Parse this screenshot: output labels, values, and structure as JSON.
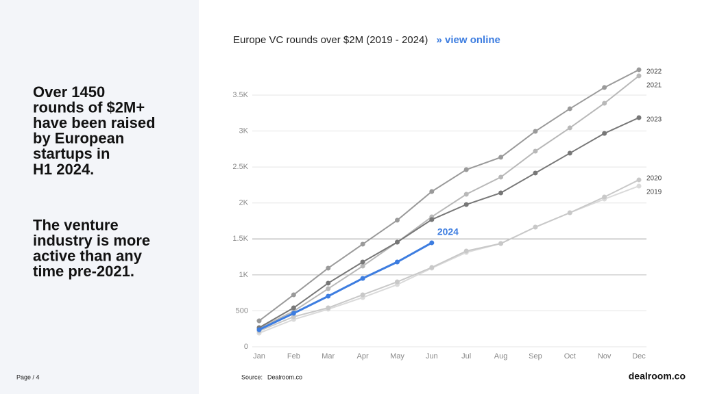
{
  "slide": {
    "paragraphs": [
      [
        "Over 1450",
        "rounds of $2M+",
        "have been raised",
        "by European",
        "startups in",
        "H1 2024."
      ],
      [
        "The venture",
        "industry is more",
        "active than any",
        "time pre-2021."
      ]
    ],
    "page": "Page / 4",
    "source_label": "Source:",
    "source": "Dealroom.co",
    "logo": "dealroom.co",
    "link": "» view online"
  },
  "chart_data": {
    "type": "line",
    "title": "Europe VC rounds over $2M (2019 - 2024)",
    "categories": [
      "Jan",
      "Feb",
      "Mar",
      "Apr",
      "May",
      "Jun",
      "Jul",
      "Aug",
      "Sep",
      "Oct",
      "Nov",
      "Dec"
    ],
    "ylim": [
      0,
      4000
    ],
    "yticks": [
      0,
      500,
      {
        "value": 1000,
        "label": "1K"
      },
      {
        "value": 1500,
        "label": "1.5K"
      },
      {
        "value": 2000,
        "label": "2K"
      },
      {
        "value": 2500,
        "label": "2.5K"
      },
      {
        "value": 3000,
        "label": "3K"
      },
      {
        "value": 3500,
        "label": "3.5K"
      }
    ],
    "grid": true,
    "series": [
      {
        "name": "2019",
        "color": "#dadada",
        "values": [
          190,
          380,
          523,
          685,
          865,
          1094,
          1312,
          1436,
          1664,
          1864,
          2054,
          2235
        ]
      },
      {
        "name": "2020",
        "color": "#c8c8c8",
        "values": [
          219,
          418,
          542,
          723,
          903,
          1103,
          1332,
          1436,
          1664,
          1864,
          2083,
          2321
        ]
      },
      {
        "name": "2021",
        "color": "#b8b8b8",
        "values": [
          257,
          495,
          808,
          1122,
          1455,
          1807,
          2121,
          2359,
          2720,
          3044,
          3386,
          3767
        ]
      },
      {
        "name": "2022",
        "color": "#9a9a9a",
        "values": [
          361,
          723,
          1094,
          1427,
          1760,
          2159,
          2463,
          2635,
          2996,
          3310,
          3605,
          3852
        ]
      },
      {
        "name": "2023",
        "color": "#777777",
        "values": [
          266,
          542,
          885,
          1179,
          1455,
          1769,
          1978,
          2140,
          2416,
          2692,
          2967,
          3186
        ]
      },
      {
        "name": "2024",
        "color": "#3d7de0",
        "values": [
          238,
          466,
          704,
          951,
          1179,
          1446,
          null,
          null,
          null,
          null,
          null,
          null
        ]
      }
    ]
  }
}
